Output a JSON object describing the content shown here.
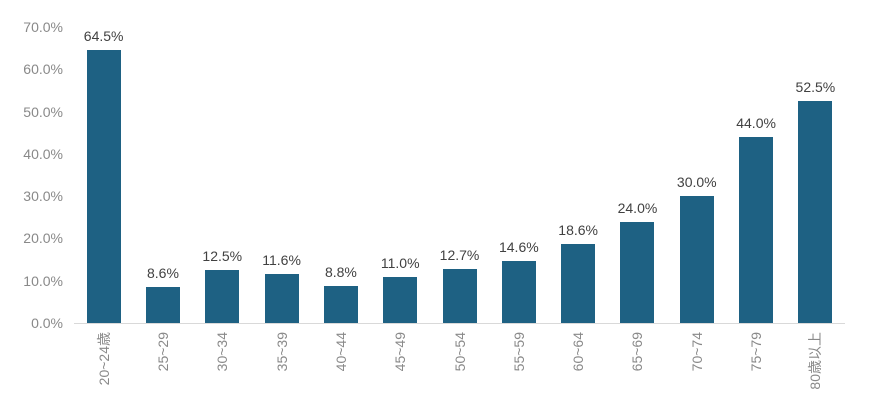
{
  "chart_data": {
    "type": "bar",
    "title": "",
    "xlabel": "",
    "ylabel": "",
    "categories": [
      "20~24歳",
      "25~29",
      "30~34",
      "35~39",
      "40~44",
      "45~49",
      "50~54",
      "55~59",
      "60~64",
      "65~69",
      "70~74",
      "75~79",
      "80歳以上"
    ],
    "values": [
      64.5,
      8.6,
      12.5,
      11.6,
      8.8,
      11.0,
      12.7,
      14.6,
      18.6,
      24.0,
      30.0,
      44.0,
      52.5
    ],
    "value_labels": [
      "64.5%",
      "8.6%",
      "12.5%",
      "11.6%",
      "8.8%",
      "11.0%",
      "12.7%",
      "14.6%",
      "18.6%",
      "24.0%",
      "30.0%",
      "44.0%",
      "52.5%"
    ],
    "y_ticks": [
      {
        "value": 0,
        "label": "0.0%"
      },
      {
        "value": 10,
        "label": "10.0%"
      },
      {
        "value": 20,
        "label": "20.0%"
      },
      {
        "value": 30,
        "label": "30.0%"
      },
      {
        "value": 40,
        "label": "40.0%"
      },
      {
        "value": 50,
        "label": "50.0%"
      },
      {
        "value": 60,
        "label": "60.0%"
      },
      {
        "value": 70,
        "label": "70.0%"
      }
    ],
    "ylim": [
      0,
      70
    ],
    "grid": false,
    "legend": false,
    "colors": {
      "bar": "#1E6183",
      "axis_line": "#D9D9D9",
      "y_tick_text": "#898989",
      "x_tick_text": "#898989",
      "value_label_text": "#414141",
      "background": "#FFFFFF"
    }
  }
}
